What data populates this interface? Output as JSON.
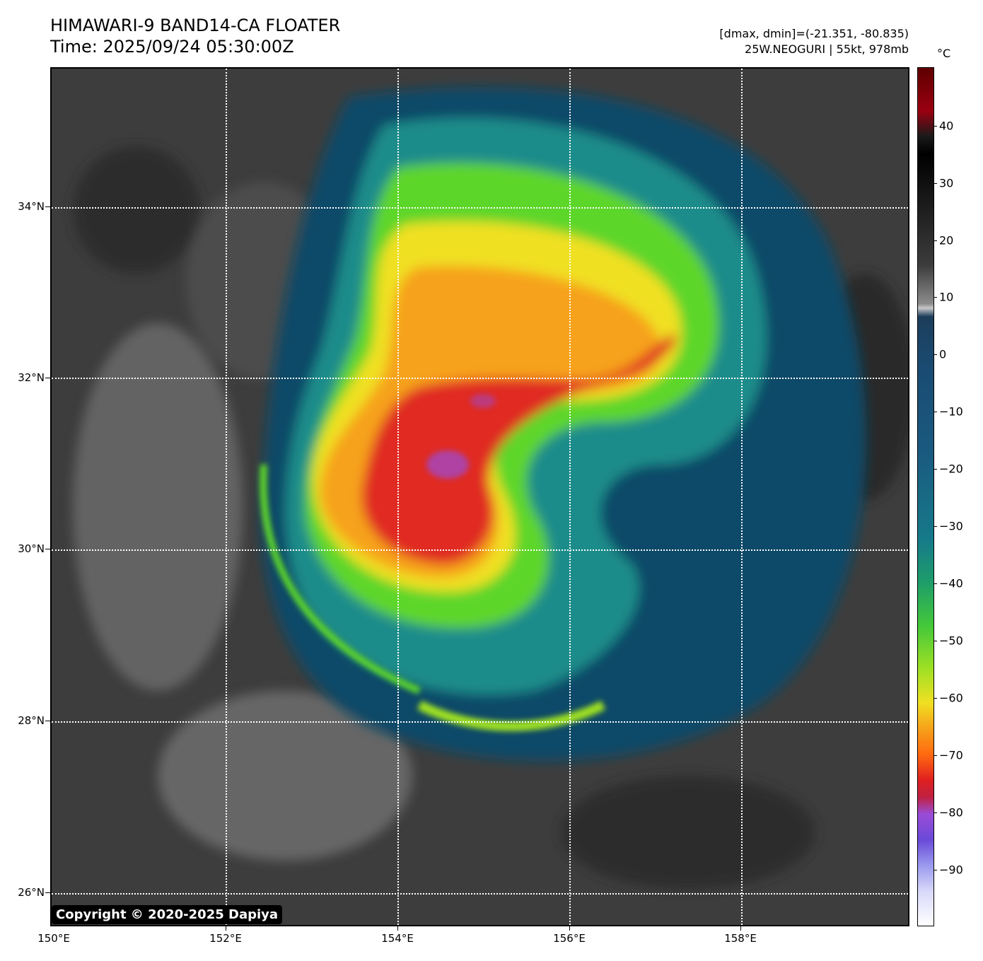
{
  "header": {
    "title_line1": "HIMAWARI-9 BAND14-CA FLOATER",
    "title_line2": "Time: 2025/09/24 05:30:00Z",
    "dmax_dmin": "[dmax, dmin]=(-21.351, -80.835)",
    "storm_info": "25W.NEOGURI | 55kt, 978mb"
  },
  "map": {
    "lat_labels": [
      "34°N",
      "32°N",
      "30°N",
      "28°N",
      "26°N"
    ],
    "lon_labels": [
      "150°E",
      "152°E",
      "154°E",
      "156°E",
      "158°E"
    ],
    "copyright": "Copyright © 2020-2025 Dapiya"
  },
  "colorbar": {
    "unit": "°C",
    "labels": [
      "40",
      "30",
      "20",
      "10",
      "0",
      "−10",
      "−20",
      "−30",
      "−40",
      "−50",
      "−60",
      "−70",
      "−80",
      "−90"
    ]
  }
}
